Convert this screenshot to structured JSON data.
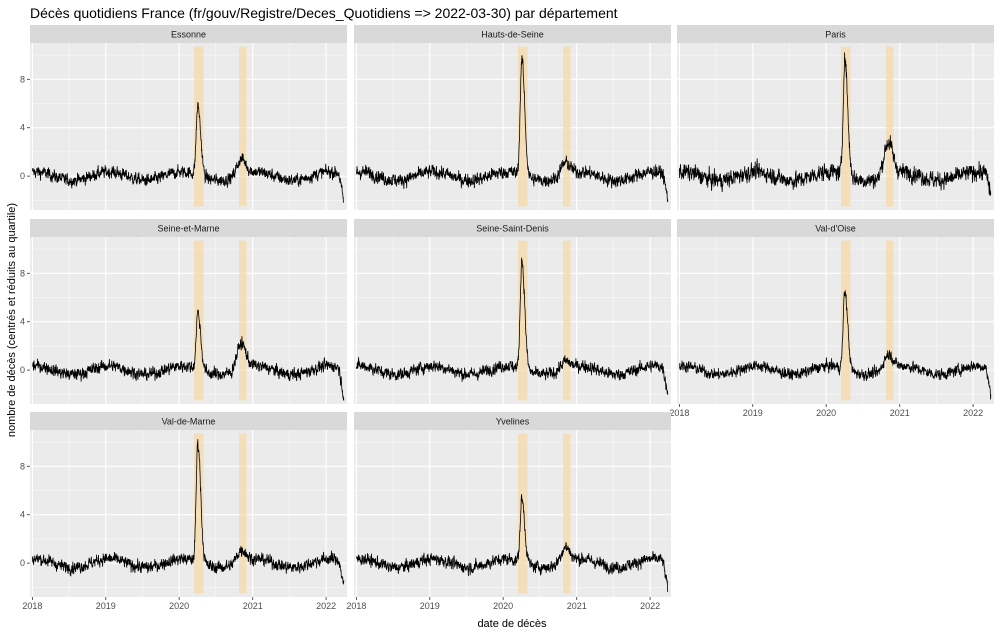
{
  "chart_data": {
    "type": "line",
    "title": "Décès quotidiens France (fr/gouv/Registre/Deces_Quotidiens => 2022-03-30) par département",
    "xlabel": "date de décès",
    "ylabel": "nombre de décès (centrés et réduits au quartile)",
    "x_range": [
      "2017-12-20",
      "2022-04-15"
    ],
    "ylim": [
      -2.8,
      11
    ],
    "y_ticks": [
      0,
      4,
      8
    ],
    "x_ticks": [
      "2018",
      "2019",
      "2020",
      "2021",
      "2022"
    ],
    "x_tick_dates": [
      "2018-01-01",
      "2019-01-01",
      "2020-01-01",
      "2021-01-01",
      "2022-01-01"
    ],
    "highlight_bands": [
      {
        "start": "2020-03-15",
        "end": "2020-05-01"
      },
      {
        "start": "2020-10-25",
        "end": "2020-12-01"
      }
    ],
    "grid": true,
    "layout": {
      "rows": 3,
      "cols": 3
    },
    "series": [
      {
        "name": "Essonne",
        "noise": 0.55,
        "peaks": [
          {
            "date": "2020-04-03",
            "value": 6.0
          },
          {
            "date": "2020-11-05",
            "value": 2.1
          }
        ],
        "end_value": -2.3
      },
      {
        "name": "Hauts-de-Seine",
        "noise": 0.6,
        "peaks": [
          {
            "date": "2020-04-03",
            "value": 9.8
          },
          {
            "date": "2020-11-05",
            "value": 1.8
          }
        ],
        "end_value": -2.0
      },
      {
        "name": "Paris",
        "noise": 0.75,
        "peaks": [
          {
            "date": "2020-04-03",
            "value": 9.9
          },
          {
            "date": "2020-11-05",
            "value": 3.5
          }
        ],
        "end_value": -1.5
      },
      {
        "name": "Seine-et-Marne",
        "noise": 0.55,
        "peaks": [
          {
            "date": "2020-04-03",
            "value": 5.0
          },
          {
            "date": "2020-11-05",
            "value": 2.9
          }
        ],
        "end_value": -2.3
      },
      {
        "name": "Seine-Saint-Denis",
        "noise": 0.55,
        "peaks": [
          {
            "date": "2020-04-03",
            "value": 9.3
          },
          {
            "date": "2020-11-05",
            "value": 1.4
          }
        ],
        "end_value": -2.0
      },
      {
        "name": "Val-d'Oise",
        "noise": 0.5,
        "peaks": [
          {
            "date": "2020-04-03",
            "value": 6.7
          },
          {
            "date": "2020-11-05",
            "value": 2.0
          }
        ],
        "end_value": -2.1
      },
      {
        "name": "Val-de-Marne",
        "noise": 0.55,
        "peaks": [
          {
            "date": "2020-04-03",
            "value": 10.2
          },
          {
            "date": "2020-11-05",
            "value": 1.8
          }
        ],
        "end_value": -2.0
      },
      {
        "name": "Yvelines",
        "noise": 0.55,
        "peaks": [
          {
            "date": "2020-04-03",
            "value": 5.5
          },
          {
            "date": "2020-11-05",
            "value": 2.0
          }
        ],
        "end_value": -2.3
      }
    ]
  }
}
